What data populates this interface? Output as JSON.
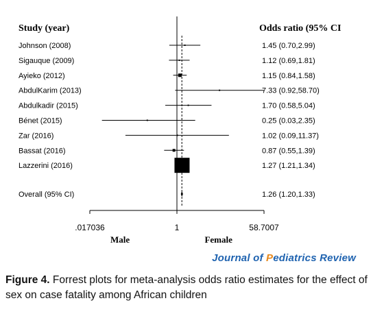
{
  "chart_data": {
    "type": "forest",
    "col_left_header": "Study (year)",
    "col_right_header": "Odds ratio (95% CI",
    "x_axis": {
      "scale": "log",
      "range": [
        0.017036,
        58.7007
      ],
      "tick_labels": [
        ".017036",
        "1",
        "58.7007"
      ],
      "reference_line": 1
    },
    "side_labels": [
      "Male",
      "Female"
    ],
    "studies": [
      {
        "label": "Johnson (2008)",
        "or": 1.45,
        "lo": 0.7,
        "hi": 2.99,
        "ci_text": "1.45 (0.70,2.99)"
      },
      {
        "label": "Sigauque (2009)",
        "or": 1.12,
        "lo": 0.69,
        "hi": 1.81,
        "ci_text": "1.12 (0.69,1.81)"
      },
      {
        "label": "Ayieko (2012)",
        "or": 1.15,
        "lo": 0.84,
        "hi": 1.58,
        "ci_text": "1.15 (0.84,1.58)"
      },
      {
        "label": "AbdulKarim (2013)",
        "or": 7.33,
        "lo": 0.92,
        "hi": 58.7,
        "ci_text": "7.33 (0.92,58.70)"
      },
      {
        "label": "Abdulkadir (2015)",
        "or": 1.7,
        "lo": 0.58,
        "hi": 5.04,
        "ci_text": "1.70 (0.58,5.04)"
      },
      {
        "label": "Bénet (2015)",
        "or": 0.25,
        "lo": 0.03,
        "hi": 2.35,
        "ci_text": "0.25 (0.03,2.35)"
      },
      {
        "label": "Zar (2016)",
        "or": 1.02,
        "lo": 0.09,
        "hi": 11.37,
        "ci_text": "1.02 (0.09,11.37)"
      },
      {
        "label": "Bassat (2016)",
        "or": 0.87,
        "lo": 0.55,
        "hi": 1.39,
        "ci_text": "0.87 (0.55,1.39)"
      },
      {
        "label": "Lazzerini (2016)",
        "or": 1.27,
        "lo": 1.21,
        "hi": 1.34,
        "ci_text": "1.27 (1.21,1.34)"
      }
    ],
    "overall": {
      "label": "Overall (95% CI)",
      "or": 1.26,
      "lo": 1.2,
      "hi": 1.33,
      "ci_text": "1.26 (1.20,1.33)"
    }
  },
  "journal": {
    "pre": "Journal of ",
    "accent": "P",
    "post": "ediatrics Review"
  },
  "caption": {
    "label": "Figure 4.",
    "text": " Forrest plots for meta-analysis odds ratio estimates for the effect of sex on case fatality among African children"
  }
}
